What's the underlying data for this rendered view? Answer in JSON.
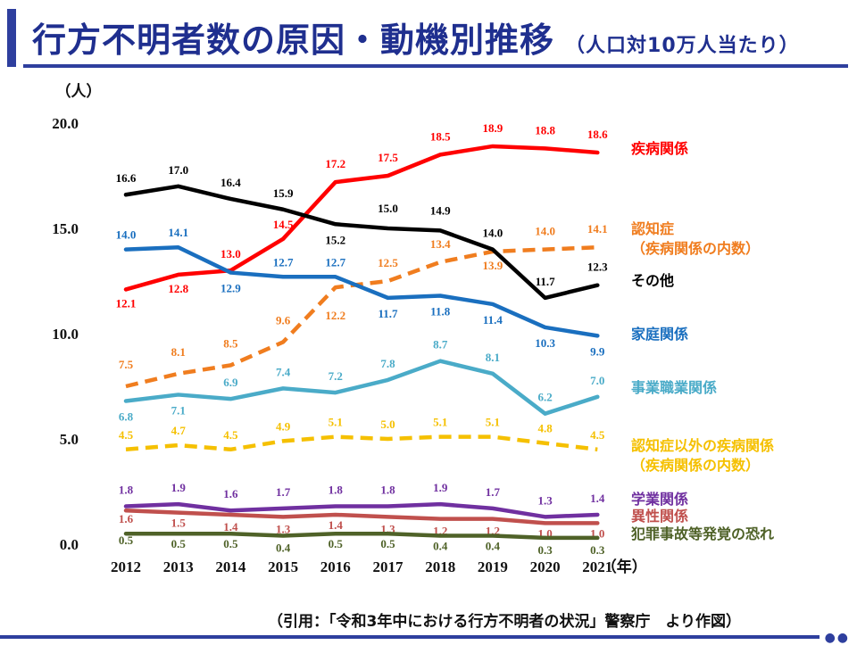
{
  "header": {
    "title": "行方不明者数の原因・動機別推移",
    "subtitle": "（人口対10万人当たり）"
  },
  "footer": {
    "source": "（引用：「令和3年中における行方不明者の状況」警察庁　より作図）"
  },
  "chart_data": {
    "type": "line",
    "title": "行方不明者数の原因・動機別推移",
    "ylabel": "（人）",
    "xlabel": "（年）",
    "ylim": [
      0,
      20
    ],
    "yticks": [
      "0.0",
      "5.0",
      "10.0",
      "15.0",
      "20.0"
    ],
    "categories": [
      "2012",
      "2013",
      "2014",
      "2015",
      "2016",
      "2017",
      "2018",
      "2019",
      "2020",
      "2021"
    ],
    "legend_placement": "right",
    "grid": false,
    "series": [
      {
        "name": "疾病関係",
        "name_lines": [
          "疾病関係"
        ],
        "color": "#ff0000",
        "dashed": false,
        "values": [
          12.1,
          12.8,
          13.0,
          14.5,
          17.2,
          17.5,
          18.5,
          18.9,
          18.8,
          18.6
        ]
      },
      {
        "name": "認知症（疾病関係の内数）",
        "name_lines": [
          "認知症",
          "（疾病関係の内数）"
        ],
        "color": "#f07d1f",
        "dashed": true,
        "values": [
          7.5,
          8.1,
          8.5,
          9.6,
          12.2,
          12.5,
          13.4,
          13.9,
          14.0,
          14.1
        ]
      },
      {
        "name": "その他",
        "name_lines": [
          "その他"
        ],
        "color": "#000000",
        "dashed": false,
        "values": [
          16.6,
          17.0,
          16.4,
          15.9,
          15.2,
          15.0,
          14.9,
          14.0,
          11.7,
          12.3
        ]
      },
      {
        "name": "家庭関係",
        "name_lines": [
          "家庭関係"
        ],
        "color": "#1a6fbf",
        "dashed": false,
        "values": [
          14.0,
          14.1,
          12.9,
          12.7,
          12.7,
          11.7,
          11.8,
          11.4,
          10.3,
          9.9
        ]
      },
      {
        "name": "事業職業関係",
        "name_lines": [
          "事業職業関係"
        ],
        "color": "#4aabc8",
        "dashed": false,
        "values": [
          6.8,
          7.1,
          6.9,
          7.4,
          7.2,
          7.8,
          8.7,
          8.1,
          6.2,
          7.0
        ]
      },
      {
        "name": "認知症以外の疾病関係（疾病関係の内数）",
        "name_lines": [
          "認知症以外の疾病関係",
          "（疾病関係の内数）"
        ],
        "color": "#f5c000",
        "dashed": true,
        "values": [
          4.5,
          4.7,
          4.5,
          4.9,
          5.1,
          5.0,
          5.1,
          5.1,
          4.8,
          4.5
        ]
      },
      {
        "name": "学業関係",
        "name_lines": [
          "学業関係"
        ],
        "color": "#7030a0",
        "dashed": false,
        "values": [
          1.8,
          1.9,
          1.6,
          1.7,
          1.8,
          1.8,
          1.9,
          1.7,
          1.3,
          1.4
        ]
      },
      {
        "name": "異性関係",
        "name_lines": [
          "異性関係"
        ],
        "color": "#c0504d",
        "dashed": false,
        "values": [
          1.6,
          1.5,
          1.4,
          1.3,
          1.4,
          1.3,
          1.2,
          1.2,
          1.0,
          1.0
        ]
      },
      {
        "name": "犯罪事故等発覚の恐れ",
        "name_lines": [
          "犯罪事故等発覚の恐れ"
        ],
        "color": "#4f6228",
        "dashed": false,
        "values": [
          0.5,
          0.5,
          0.5,
          0.4,
          0.5,
          0.5,
          0.4,
          0.4,
          0.3,
          0.3
        ]
      }
    ]
  }
}
